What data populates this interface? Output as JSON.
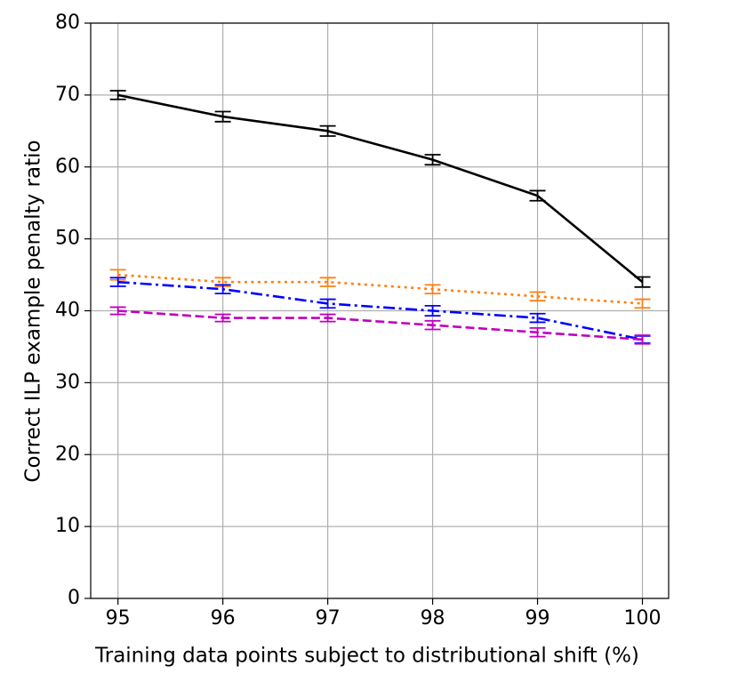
{
  "chart_data": {
    "type": "line",
    "xlabel": "Training data points subject to distributional shift (%)",
    "ylabel": "Correct ILP example penalty ratio",
    "x": [
      95,
      96,
      97,
      98,
      99,
      100
    ],
    "series": [
      {
        "color": "#000000",
        "linestyle": "solid",
        "values": [
          70,
          67,
          65,
          61,
          56,
          44
        ],
        "errors": [
          0.6,
          0.7,
          0.7,
          0.7,
          0.7,
          0.7
        ]
      },
      {
        "color": "#ff7f0e",
        "linestyle": "dotted",
        "values": [
          45,
          44,
          44,
          43,
          42,
          41
        ],
        "errors": [
          0.7,
          0.6,
          0.6,
          0.6,
          0.6,
          0.6
        ]
      },
      {
        "color": "#0000ff",
        "linestyle": "dashdot",
        "values": [
          44,
          43,
          41,
          40,
          39,
          36
        ],
        "errors": [
          0.6,
          0.6,
          0.6,
          0.7,
          0.6,
          0.5
        ]
      },
      {
        "color": "#bf00bf",
        "linestyle": "dashed",
        "values": [
          40,
          39,
          39,
          38,
          37,
          36
        ],
        "errors": [
          0.5,
          0.5,
          0.5,
          0.6,
          0.6,
          0.6
        ]
      }
    ],
    "xlim": [
      94.74,
      100.25
    ],
    "xticks": [
      95,
      96,
      97,
      98,
      99,
      100
    ],
    "ylim": [
      0,
      80
    ],
    "yticks": [
      0,
      10,
      20,
      30,
      40,
      50,
      60,
      70,
      80
    ],
    "grid": true
  }
}
